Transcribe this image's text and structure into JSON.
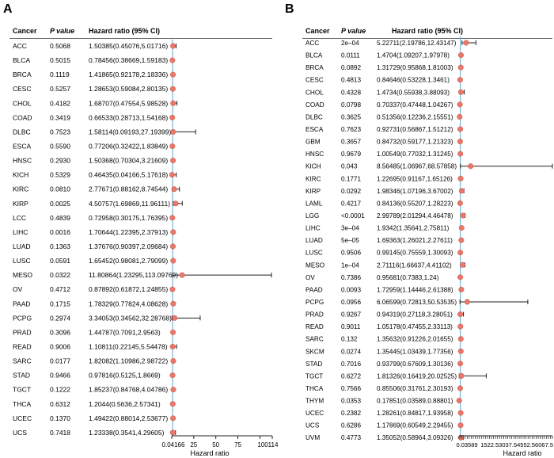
{
  "panels": [
    {
      "letter": "A",
      "headers": {
        "cancer": "Cancer",
        "p": "P value",
        "hr": "Hazard ratio (95% CI)"
      },
      "axis_ticks": [
        "0.04166",
        "25",
        "50",
        "75",
        "100114"
      ],
      "xlabel": "Hazard ratio",
      "rows": [
        {
          "cancer": "ACC",
          "p": "0.5068",
          "hr": "1.50385(0.45076,5.01716)"
        },
        {
          "cancer": "BLCA",
          "p": "0.5015",
          "hr": "0.78456(0.38669,1.59183)"
        },
        {
          "cancer": "BRCA",
          "p": "0.1119",
          "hr": "1.41865(0.92178,2.18336)"
        },
        {
          "cancer": "CESC",
          "p": "0.5257",
          "hr": "1.28653(0.59084,2.80135)"
        },
        {
          "cancer": "CHOL",
          "p": "0.4182",
          "hr": "1.68707(0.47554,5.98528)"
        },
        {
          "cancer": "COAD",
          "p": "0.3419",
          "hr": "0.66533(0.28713,1.54168)"
        },
        {
          "cancer": "DLBC",
          "p": "0.7523",
          "hr": "1.58114(0.09193,27.19399)"
        },
        {
          "cancer": "ESCA",
          "p": "0.5590",
          "hr": "0.77206(0.32422,1.83849)"
        },
        {
          "cancer": "HNSC",
          "p": "0.2930",
          "hr": "1.50368(0.70304,3.21609)"
        },
        {
          "cancer": "KICH",
          "p": "0.5329",
          "hr": "0.46435(0.04166,5.17618)"
        },
        {
          "cancer": "KIRC",
          "p": "0.0810",
          "hr": "2.77671(0.88162,8.74544)"
        },
        {
          "cancer": "KIRP",
          "p": "0.0025",
          "hr": "4.50757(1.69869,11.96111)"
        },
        {
          "cancer": "LCC",
          "p": "0.4839",
          "hr": "0.72958(0.30175,1.76395)"
        },
        {
          "cancer": "LIHC",
          "p": "0.0016",
          "hr": "1.70644(1.22395,2.37913)"
        },
        {
          "cancer": "LUAD",
          "p": "0.1363",
          "hr": "1.37676(0.90397,2.09684)"
        },
        {
          "cancer": "LUSC",
          "p": "0.0591",
          "hr": "1.65452(0.98081,2.79099)"
        },
        {
          "cancer": "MESO",
          "p": "0.0322",
          "hr": "11.80864(1.23295,113.09769)"
        },
        {
          "cancer": "OV",
          "p": "0.4712",
          "hr": "0.87892(0.61872,1.24855)"
        },
        {
          "cancer": "PAAD",
          "p": "0.1715",
          "hr": "1.78329(0.77824,4.08628)"
        },
        {
          "cancer": "PCPG",
          "p": "0.2974",
          "hr": "3.34053(0.34562,32.28768)"
        },
        {
          "cancer": "PRAD",
          "p": "0.3096",
          "hr": "1.44787(0.7091,2.9563)"
        },
        {
          "cancer": "READ",
          "p": "0.9006",
          "hr": "1.10811(0.22145,5.54478)"
        },
        {
          "cancer": "SARC",
          "p": "0.0177",
          "hr": "1.82082(1.10986,2.98722)"
        },
        {
          "cancer": "STAD",
          "p": "0.9466",
          "hr": "0.97816(0.5125,1.8669)"
        },
        {
          "cancer": "TGCT",
          "p": "0.1222",
          "hr": "1.85237(0.84768,4.04786)"
        },
        {
          "cancer": "THCA",
          "p": "0.6312",
          "hr": "1.2044(0.5636,2.57341)"
        },
        {
          "cancer": "UCEC",
          "p": "0.1370",
          "hr": "1.49422(0.88014,2.53677)"
        },
        {
          "cancer": "UCS",
          "p": "0.7418",
          "hr": "1.23338(0.3541,4.29605)"
        }
      ]
    },
    {
      "letter": "B",
      "headers": {
        "cancer": "Cancer",
        "p": "P value",
        "hr": "Hazard ratio (95% CI)"
      },
      "axis_ticks": [
        "0.03589",
        "1522.53037.54552.56067.5"
      ],
      "xlabel": "Hazard ratio",
      "rows": [
        {
          "cancer": "ACC",
          "p": "2e–04",
          "hr": "5.22711(2.19786,12.43147)"
        },
        {
          "cancer": "BLCA",
          "p": "0.0111",
          "hr": "1.4704(1.09207,1.97978)"
        },
        {
          "cancer": "BRCA",
          "p": "0.0892",
          "hr": "1.31729(0.95868,1.81003)"
        },
        {
          "cancer": "CESC",
          "p": "0.4813",
          "hr": "0.84646(0.53228,1.3461)"
        },
        {
          "cancer": "CHOL",
          "p": "0.4328",
          "hr": "1.4734(0.55938,3.88093)"
        },
        {
          "cancer": "COAD",
          "p": "0.0798",
          "hr": "0.70337(0.47448,1.04267)"
        },
        {
          "cancer": "DLBC",
          "p": "0.3625",
          "hr": "0.51356(0.12236,2.15551)"
        },
        {
          "cancer": "ESCA",
          "p": "0.7623",
          "hr": "0.92731(0.56867,1.51212)"
        },
        {
          "cancer": "GBM",
          "p": "0.3657",
          "hr": "0.84732(0.59177,1.21323)"
        },
        {
          "cancer": "HNSC",
          "p": "0.9679",
          "hr": "1.00549(0.77032,1.31245)"
        },
        {
          "cancer": "KICH",
          "p": "0.043",
          "hr": "8.56485(1.06967,68.57858)"
        },
        {
          "cancer": "KIRC",
          "p": "0.1771",
          "hr": "1.22695(0.91167,1.65126)"
        },
        {
          "cancer": "KIRP",
          "p": "0.0292",
          "hr": "1.98346(1.07196,3.67002)"
        },
        {
          "cancer": "LAML",
          "p": "0.4217",
          "hr": "0.84136(0.55207,1.28223)"
        },
        {
          "cancer": "LGG",
          "p": "<0.0001",
          "hr": "2.99789(2.01294,4.46478)"
        },
        {
          "cancer": "LIHC",
          "p": "3e–04",
          "hr": "1.9342(1.35641,2.75811)"
        },
        {
          "cancer": "LUAD",
          "p": "5e–05",
          "hr": "1.69363(1.26021,2.27611)"
        },
        {
          "cancer": "LUSC",
          "p": "0.9506",
          "hr": "0.99145(0.75559,1.30093)"
        },
        {
          "cancer": "MESO",
          "p": "1e–04",
          "hr": "2.71116(1.66637,4.41102)"
        },
        {
          "cancer": "OV",
          "p": "0.7386",
          "hr": "0.95681(0.7383,1.24)"
        },
        {
          "cancer": "PAAD",
          "p": "0.0093",
          "hr": "1.72959(1.14446,2.61388)"
        },
        {
          "cancer": "PCPG",
          "p": "0.0956",
          "hr": "6.06599(0.72813,50.53535)"
        },
        {
          "cancer": "PRAD",
          "p": "0.9267",
          "hr": "0.94319(0.27118,3.28051)"
        },
        {
          "cancer": "READ",
          "p": "0.9011",
          "hr": "1.05178(0.47455,2.33113)"
        },
        {
          "cancer": "SARC",
          "p": "0.132",
          "hr": "1.35632(0.91226,2.01655)"
        },
        {
          "cancer": "SKCM",
          "p": "0.0274",
          "hr": "1.35445(1.03439,1.77356)"
        },
        {
          "cancer": "STAD",
          "p": "0.7016",
          "hr": "0.93799(0.67609,1.30136)"
        },
        {
          "cancer": "TGCT",
          "p": "0.6272",
          "hr": "1.81326(0.16419,20.02525)"
        },
        {
          "cancer": "THCA",
          "p": "0.7566",
          "hr": "0.85506(0.31761,2.30193)"
        },
        {
          "cancer": "THYM",
          "p": "0.0353",
          "hr": "0.17851(0.03589,0.88801)"
        },
        {
          "cancer": "UCEC",
          "p": "0.2382",
          "hr": "1.28261(0.84817,1.93958)"
        },
        {
          "cancer": "UCS",
          "p": "0.6286",
          "hr": "1.17869(0.60549,2.29455)"
        },
        {
          "cancer": "UVM",
          "p": "0.4773",
          "hr": "1.35052(0.58964,3.09326)"
        }
      ]
    }
  ],
  "chart_data": [
    {
      "type": "forest",
      "title": "A",
      "xlabel": "Hazard ratio",
      "xlim": [
        0.04166,
        114
      ],
      "reference": 1,
      "categories": [
        "ACC",
        "BLCA",
        "BRCA",
        "CESC",
        "CHOL",
        "COAD",
        "DLBC",
        "ESCA",
        "HNSC",
        "KICH",
        "KIRC",
        "KIRP",
        "LCC",
        "LIHC",
        "LUAD",
        "LUSC",
        "MESO",
        "OV",
        "PAAD",
        "PCPG",
        "PRAD",
        "READ",
        "SARC",
        "STAD",
        "TGCT",
        "THCA",
        "UCEC",
        "UCS"
      ],
      "hr": [
        1.50385,
        0.78456,
        1.41865,
        1.28653,
        1.68707,
        0.66533,
        1.58114,
        0.77206,
        1.50368,
        0.46435,
        2.77671,
        4.50757,
        0.72958,
        1.70644,
        1.37676,
        1.65452,
        11.80864,
        0.87892,
        1.78329,
        3.34053,
        1.44787,
        1.10811,
        1.82082,
        0.97816,
        1.85237,
        1.2044,
        1.49422,
        1.23338
      ],
      "lower": [
        0.45076,
        0.38669,
        0.92178,
        0.59084,
        0.47554,
        0.28713,
        0.09193,
        0.32422,
        0.70304,
        0.04166,
        0.88162,
        1.69869,
        0.30175,
        1.22395,
        0.90397,
        0.98081,
        1.23295,
        0.61872,
        0.77824,
        0.34562,
        0.7091,
        0.22145,
        1.10986,
        0.5125,
        0.84768,
        0.5636,
        0.88014,
        0.3541
      ],
      "upper": [
        5.01716,
        1.59183,
        2.18336,
        2.80135,
        5.98528,
        1.54168,
        27.19399,
        1.83849,
        3.21609,
        5.17618,
        8.74544,
        11.96111,
        1.76395,
        2.37913,
        2.09684,
        2.79099,
        113.09769,
        1.24855,
        4.08628,
        32.28768,
        2.9563,
        5.54478,
        2.98722,
        1.8669,
        4.04786,
        2.57341,
        2.53677,
        4.29605
      ]
    },
    {
      "type": "forest",
      "title": "B",
      "xlabel": "Hazard ratio",
      "xlim": [
        0.03589,
        68.6
      ],
      "reference": 1,
      "categories": [
        "ACC",
        "BLCA",
        "BRCA",
        "CESC",
        "CHOL",
        "COAD",
        "DLBC",
        "ESCA",
        "GBM",
        "HNSC",
        "KICH",
        "KIRC",
        "KIRP",
        "LAML",
        "LGG",
        "LIHC",
        "LUAD",
        "LUSC",
        "MESO",
        "OV",
        "PAAD",
        "PCPG",
        "PRAD",
        "READ",
        "SARC",
        "SKCM",
        "STAD",
        "TGCT",
        "THCA",
        "THYM",
        "UCEC",
        "UCS",
        "UVM"
      ],
      "hr": [
        5.22711,
        1.4704,
        1.31729,
        0.84646,
        1.4734,
        0.70337,
        0.51356,
        0.92731,
        0.84732,
        1.00549,
        8.56485,
        1.22695,
        1.98346,
        0.84136,
        2.99789,
        1.9342,
        1.69363,
        0.99145,
        2.71116,
        0.95681,
        1.72959,
        6.06599,
        0.94319,
        1.05178,
        1.35632,
        1.35445,
        0.93799,
        1.81326,
        0.85506,
        0.17851,
        1.28261,
        1.17869,
        1.35052
      ],
      "lower": [
        2.19786,
        1.09207,
        0.95868,
        0.53228,
        0.55938,
        0.47448,
        0.12236,
        0.56867,
        0.59177,
        0.77032,
        1.06967,
        0.91167,
        1.07196,
        0.55207,
        2.01294,
        1.35641,
        1.26021,
        0.75559,
        1.66637,
        0.7383,
        1.14446,
        0.72813,
        0.27118,
        0.47455,
        0.91226,
        1.03439,
        0.67609,
        0.16419,
        0.31761,
        0.03589,
        0.84817,
        0.60549,
        0.58964
      ],
      "upper": [
        12.43147,
        1.97978,
        1.81003,
        1.3461,
        3.88093,
        1.04267,
        2.15551,
        1.51212,
        1.21323,
        1.31245,
        68.57858,
        1.65126,
        3.67002,
        1.28223,
        4.46478,
        2.75811,
        2.27611,
        1.30093,
        4.41102,
        1.24,
        2.61388,
        50.53535,
        3.28051,
        2.33113,
        2.01655,
        1.77356,
        1.30136,
        20.02525,
        2.30193,
        0.88801,
        1.93958,
        2.29455,
        3.09326
      ]
    }
  ]
}
